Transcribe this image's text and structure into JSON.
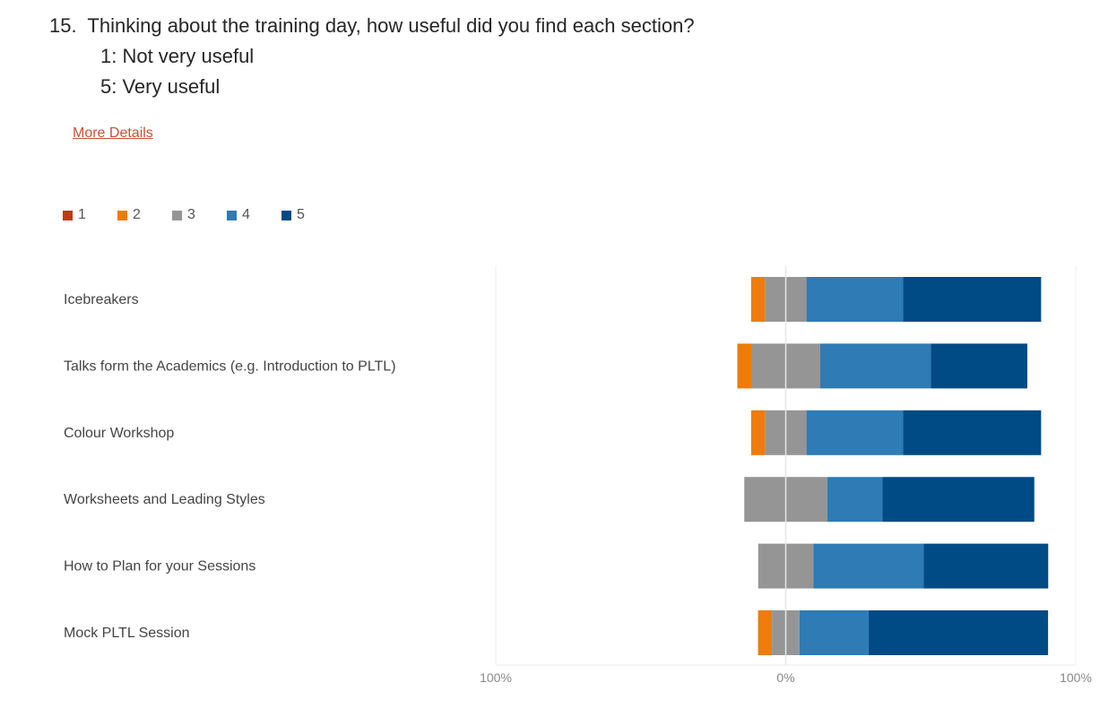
{
  "question": {
    "number": "15.",
    "text": "Thinking about the training day, how useful did you find each section?",
    "scale_low": "1: Not very useful",
    "scale_high": "5: Very useful"
  },
  "more_details": "More Details",
  "chart_data": {
    "type": "bar",
    "orientation": "horizontal-diverging-stacked",
    "categories": [
      "Icebreakers",
      "Talks form the Academics (e.g. Introduction to PLTL)",
      "Colour Workshop",
      "Worksheets and Leading Styles",
      "How to Plan for your Sessions",
      "Mock PLTL Session"
    ],
    "series": [
      {
        "name": "1",
        "color": "#c0390e",
        "values": [
          0,
          0,
          0,
          0,
          0,
          0
        ]
      },
      {
        "name": "2",
        "color": "#ef7b0b",
        "values": [
          4.8,
          4.8,
          4.8,
          0,
          0,
          4.8
        ]
      },
      {
        "name": "3",
        "color": "#959595",
        "values": [
          14.3,
          23.8,
          14.3,
          28.6,
          19.0,
          9.5
        ]
      },
      {
        "name": "4",
        "color": "#2e7bb5",
        "values": [
          33.3,
          38.1,
          33.3,
          19.0,
          38.1,
          23.8
        ]
      },
      {
        "name": "5",
        "color": "#004a86",
        "values": [
          47.6,
          33.3,
          47.6,
          52.4,
          42.9,
          61.9
        ]
      }
    ],
    "xlim": [
      -100,
      100
    ],
    "tick_labels": [
      "100%",
      "0%",
      "100%"
    ],
    "legend": "top-left",
    "grid": false
  }
}
